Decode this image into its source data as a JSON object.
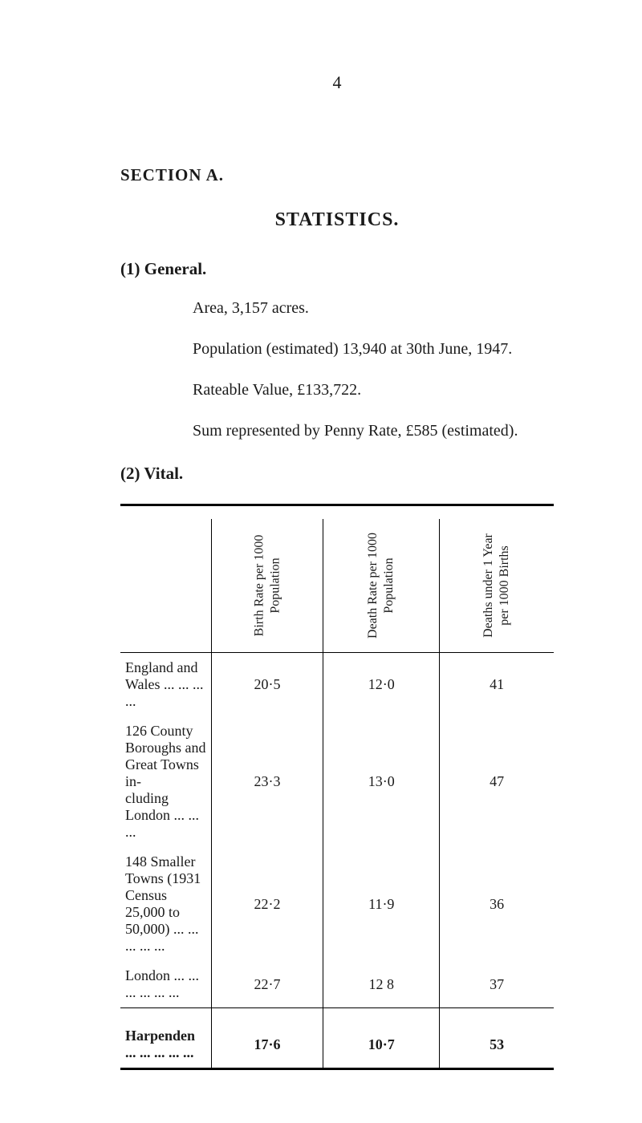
{
  "page_number": "4",
  "section_heading": "SECTION  A.",
  "statistics_title": "STATISTICS.",
  "general": {
    "heading": "(1)  General.",
    "lines": [
      "Area, 3,157 acres.",
      "Population (estimated) 13,940 at 30th June, 1947.",
      "Rateable Value, £133,722.",
      "Sum represented by Penny Rate, £585 (estimated)."
    ]
  },
  "vital": {
    "heading": "(2)  Vital.",
    "columns": [
      "Birth Rate per 1000\nPopulation",
      "Death Rate per 1000\nPopulation",
      "Deaths under 1 Year\nper 1000 Births"
    ],
    "rows": [
      {
        "label": "England and Wales    ...    ...    ...    ...",
        "c1": "20·5",
        "c2": "12·0",
        "c3": "41"
      },
      {
        "label": "126 County Boroughs and Great Towns in-\ncluding London    ...            ...    ...",
        "c1": "23·3",
        "c2": "13·0",
        "c3": "47"
      },
      {
        "label": "148 Smaller Towns (1931 Census 25,000 to\n50,000)        ...        ...    ...    ...    ...",
        "c1": "22·2",
        "c2": "11·9",
        "c3": "36"
      },
      {
        "label": "London    ...    ...    ...    ...    ...    ...",
        "c1": "22·7",
        "c2": "12 8",
        "c3": "37"
      }
    ],
    "harpenden": {
      "label": "Harpenden        ...    ...    ...    ...    ...",
      "c1": "17·6",
      "c2": "10·7",
      "c3": "53"
    }
  },
  "style": {
    "background": "#ffffff",
    "text_color": "#1a1a1a",
    "rule_heavy": "#000000",
    "rule_light": "#000000",
    "body_fontsize": 20,
    "table_fontsize": 18,
    "vert_fontsize": 16
  }
}
